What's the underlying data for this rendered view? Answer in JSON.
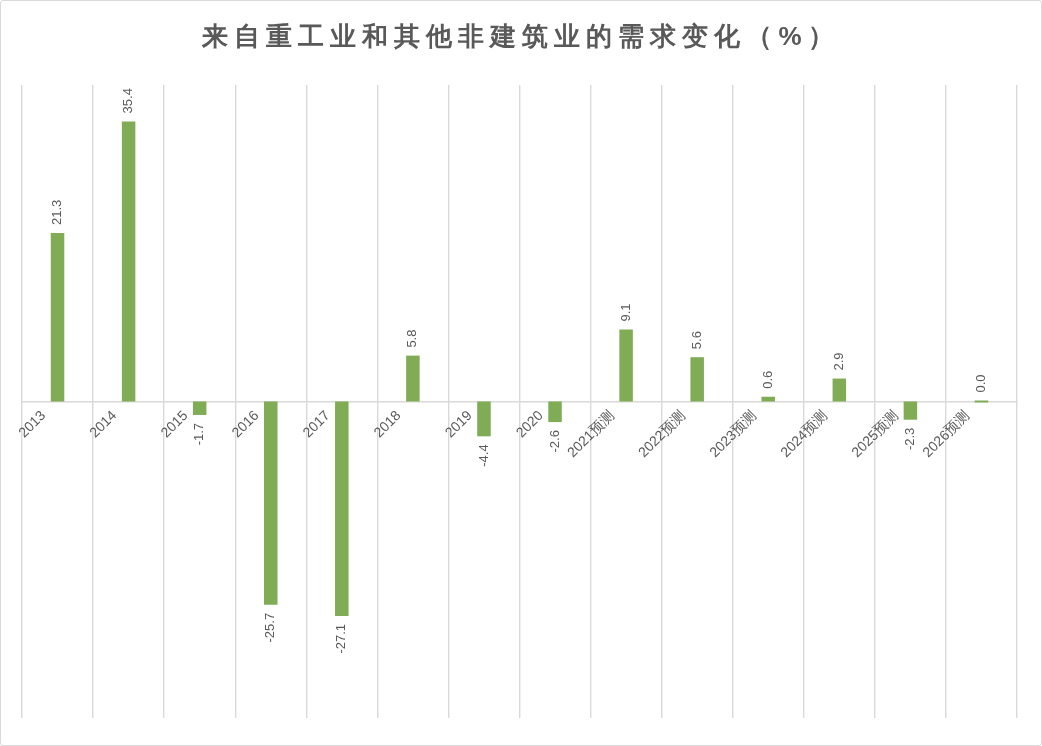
{
  "chart_data": {
    "type": "bar",
    "title": "来自重工业和其他非建筑业的需求变化（%）",
    "categories": [
      "2013",
      "2014",
      "2015",
      "2016",
      "2017",
      "2018",
      "2019",
      "2020",
      "2021预测",
      "2022预测",
      "2023预测",
      "2024预测",
      "2025预测",
      "2026预测"
    ],
    "values": [
      21.3,
      35.4,
      -1.7,
      -25.7,
      -27.1,
      5.8,
      -4.4,
      -2.6,
      9.1,
      5.6,
      0.6,
      2.9,
      -2.3,
      0.0
    ],
    "value_labels": [
      "21.3",
      "35.4",
      "-1.7",
      "-25.7",
      "-27.1",
      "5.8",
      "-4.4",
      "-2.6",
      "9.1",
      "5.6",
      "0.6",
      "2.9",
      "-2.3",
      "0.0"
    ],
    "color": "#7fac55",
    "ylim": [
      -40,
      40
    ],
    "tick_labels": "x",
    "grid": "x"
  }
}
